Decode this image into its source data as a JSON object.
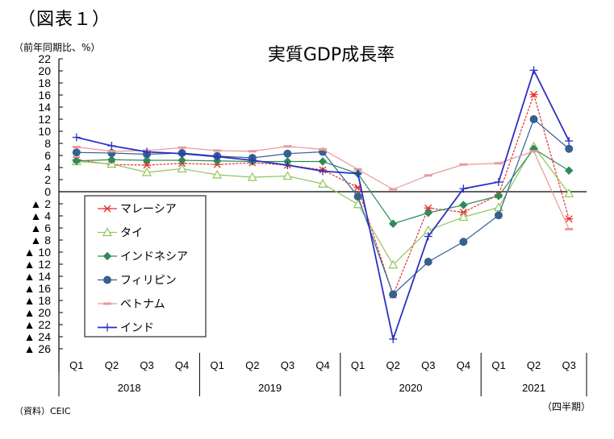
{
  "figure_label": "（図表１）",
  "unit_label": "（前年同期比、%）",
  "source_note": "（資料）CEIC",
  "period_note": "（四半期）",
  "chart_data": {
    "type": "line",
    "title": "実質GDP成長率",
    "xlabel": "（四半期）",
    "ylabel": "（前年同期比、%）",
    "ylim": [
      -26,
      22
    ],
    "yticks": [
      22,
      20,
      18,
      16,
      14,
      12,
      10,
      8,
      6,
      4,
      2,
      0,
      -2,
      -4,
      -6,
      -8,
      -10,
      -12,
      -14,
      -16,
      -18,
      -20,
      -22,
      -24,
      -26
    ],
    "ytick_labels": [
      "22",
      "20",
      "18",
      "16",
      "14",
      "12",
      "10",
      "8",
      "6",
      "4",
      "2",
      "0",
      "▲ 2",
      "▲ 4",
      "▲ 6",
      "▲ 8",
      "▲ 10",
      "▲ 12",
      "▲ 14",
      "▲ 16",
      "▲ 18",
      "▲ 20",
      "▲ 22",
      "▲ 24",
      "▲ 26"
    ],
    "categories": [
      "Q1",
      "Q2",
      "Q3",
      "Q4",
      "Q1",
      "Q2",
      "Q3",
      "Q4",
      "Q1",
      "Q2",
      "Q3",
      "Q4",
      "Q1",
      "Q2",
      "Q3"
    ],
    "year_groups": [
      {
        "label": "2018",
        "count": 4
      },
      {
        "label": "2019",
        "count": 4
      },
      {
        "label": "2020",
        "count": 4
      },
      {
        "label": "2021",
        "count": 3
      }
    ],
    "grid": false,
    "legend_position": "left-middle",
    "series": [
      {
        "name": "マレーシア",
        "color": "#e8312f",
        "marker": "star",
        "dashed": true,
        "values": [
          5.3,
          4.5,
          4.4,
          4.7,
          4.5,
          4.8,
          4.4,
          3.6,
          0.7,
          -17.1,
          -2.7,
          -3.4,
          -0.5,
          16.1,
          -4.5
        ]
      },
      {
        "name": "タイ",
        "color": "#92c65a",
        "marker": "triangle",
        "dashed": false,
        "values": [
          5.0,
          4.6,
          3.2,
          3.8,
          2.8,
          2.4,
          2.6,
          1.3,
          -2.1,
          -12.1,
          -6.4,
          -4.2,
          -2.6,
          7.5,
          -0.3
        ]
      },
      {
        "name": "インドネシア",
        "color": "#2e8b57",
        "marker": "diamond",
        "dashed": false,
        "values": [
          5.1,
          5.3,
          5.2,
          5.2,
          5.1,
          5.0,
          5.0,
          5.0,
          3.0,
          -5.3,
          -3.5,
          -2.2,
          -0.7,
          7.1,
          3.5
        ]
      },
      {
        "name": "フィリピン",
        "color": "#34618f",
        "marker": "circle",
        "dashed": false,
        "values": [
          6.5,
          6.4,
          6.2,
          6.4,
          5.9,
          5.6,
          6.3,
          6.6,
          -0.8,
          -17.0,
          -11.6,
          -8.3,
          -3.9,
          12.0,
          7.1
        ]
      },
      {
        "name": "ベトナム",
        "color": "#e9999a",
        "marker": "dash",
        "dashed": false,
        "values": [
          7.4,
          6.7,
          6.8,
          7.3,
          6.8,
          6.7,
          7.5,
          7.0,
          3.7,
          0.4,
          2.7,
          4.5,
          4.7,
          6.7,
          -6.2
        ]
      },
      {
        "name": "インド",
        "color": "#2b2fc2",
        "marker": "plus",
        "dashed": false,
        "values": [
          9.0,
          7.6,
          6.6,
          6.3,
          5.8,
          5.2,
          4.4,
          3.4,
          3.0,
          -24.4,
          -7.4,
          0.5,
          1.6,
          20.1,
          8.4
        ]
      }
    ]
  }
}
